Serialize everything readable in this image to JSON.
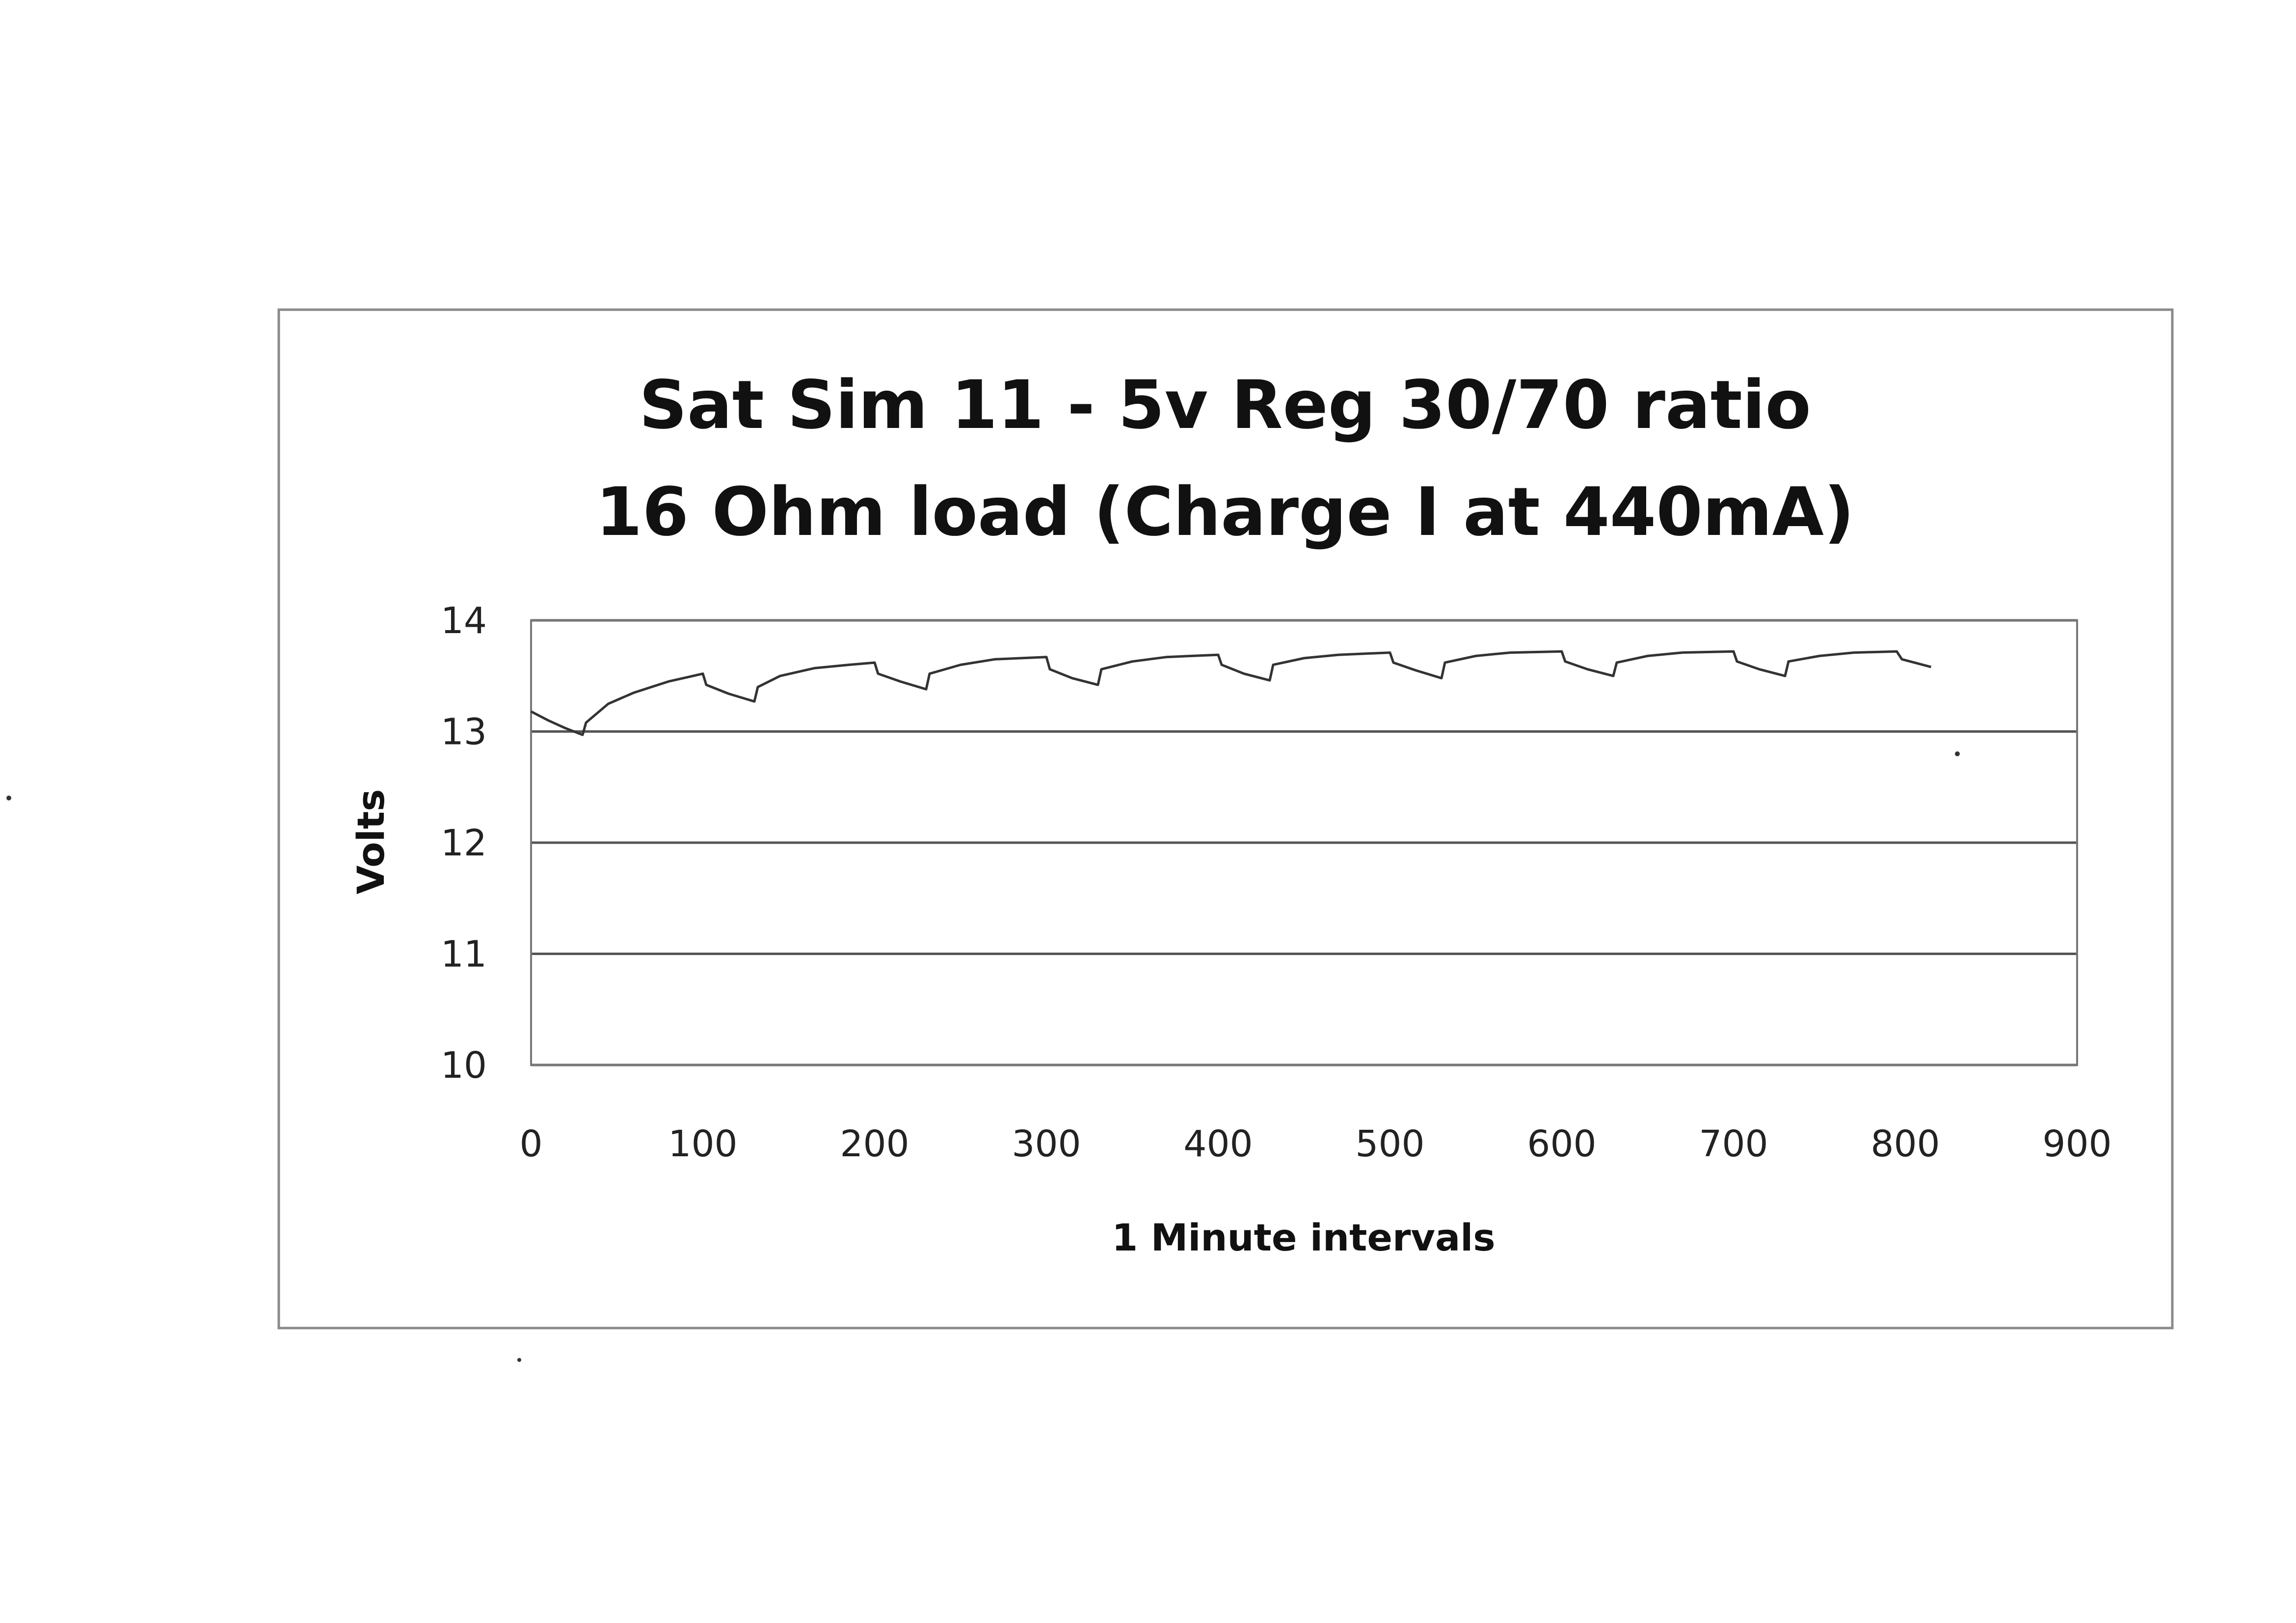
{
  "chart_data": {
    "type": "line",
    "title_lines": [
      "Sat Sim 11 - 5v Reg 30/70 ratio",
      "16 Ohm load (Charge I at 440mA)"
    ],
    "xlabel": "1 Minute intervals",
    "ylabel": "Volts",
    "xlim": [
      0,
      900
    ],
    "ylim": [
      10,
      14
    ],
    "x_ticks": [
      "0",
      "100",
      "200",
      "300",
      "400",
      "500",
      "600",
      "700",
      "800",
      "900"
    ],
    "y_ticks": [
      "14",
      "13",
      "12",
      "11",
      "10"
    ],
    "grid": true,
    "legend": "none",
    "series": [
      {
        "color": "#333333",
        "points": [
          [
            0,
            13.18
          ],
          [
            10,
            13.1
          ],
          [
            20,
            13.03
          ],
          [
            30,
            12.97
          ],
          [
            32,
            13.08
          ],
          [
            45,
            13.25
          ],
          [
            60,
            13.35
          ],
          [
            80,
            13.45
          ],
          [
            100,
            13.52
          ],
          [
            102,
            13.42
          ],
          [
            115,
            13.34
          ],
          [
            130,
            13.27
          ],
          [
            132,
            13.4
          ],
          [
            145,
            13.5
          ],
          [
            165,
            13.57
          ],
          [
            185,
            13.6
          ],
          [
            200,
            13.62
          ],
          [
            202,
            13.52
          ],
          [
            215,
            13.45
          ],
          [
            230,
            13.38
          ],
          [
            232,
            13.52
          ],
          [
            250,
            13.6
          ],
          [
            270,
            13.65
          ],
          [
            300,
            13.67
          ],
          [
            302,
            13.56
          ],
          [
            315,
            13.48
          ],
          [
            330,
            13.42
          ],
          [
            332,
            13.56
          ],
          [
            350,
            13.63
          ],
          [
            370,
            13.67
          ],
          [
            400,
            13.69
          ],
          [
            402,
            13.6
          ],
          [
            415,
            13.52
          ],
          [
            430,
            13.46
          ],
          [
            432,
            13.6
          ],
          [
            450,
            13.66
          ],
          [
            470,
            13.69
          ],
          [
            500,
            13.71
          ],
          [
            502,
            13.62
          ],
          [
            515,
            13.55
          ],
          [
            530,
            13.48
          ],
          [
            532,
            13.62
          ],
          [
            550,
            13.68
          ],
          [
            570,
            13.71
          ],
          [
            600,
            13.72
          ],
          [
            602,
            13.63
          ],
          [
            615,
            13.56
          ],
          [
            630,
            13.5
          ],
          [
            632,
            13.62
          ],
          [
            650,
            13.68
          ],
          [
            670,
            13.71
          ],
          [
            700,
            13.72
          ],
          [
            702,
            13.63
          ],
          [
            715,
            13.56
          ],
          [
            730,
            13.5
          ],
          [
            732,
            13.63
          ],
          [
            750,
            13.68
          ],
          [
            770,
            13.71
          ],
          [
            795,
            13.72
          ],
          [
            798,
            13.65
          ],
          [
            815,
            13.58
          ]
        ]
      }
    ]
  }
}
